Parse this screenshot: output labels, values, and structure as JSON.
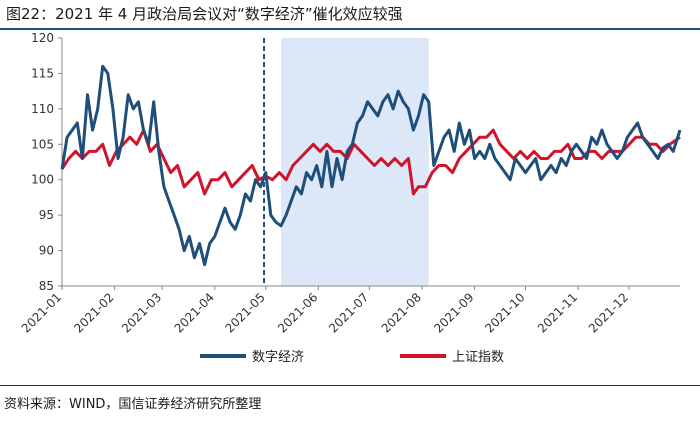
{
  "header": {
    "title": "图22：2021 年 4 月政治局会议对“数字经济”催化效应较强"
  },
  "footer": {
    "source": "资料来源：WIND，国信证券经济研究所整理"
  },
  "chart_data": {
    "type": "line",
    "title": "图22：2021 年 4 月政治局会议对“数字经济”催化效应较强",
    "xlabel": "",
    "ylabel": "",
    "x_ticks": [
      "2021-01",
      "2021-02",
      "2021-03",
      "2021-04",
      "2021-05",
      "2021-06",
      "2021-07",
      "2021-08",
      "2021-09",
      "2021-10",
      "2021-11",
      "2021-12"
    ],
    "y_ticks": [
      85,
      90,
      95,
      100,
      105,
      110,
      115,
      120
    ],
    "ylim": [
      85,
      120
    ],
    "xlim": [
      "2021-01-01",
      "2021-12-31"
    ],
    "legend_position": "bottom",
    "marker_line": {
      "date": "2021-04-30",
      "style": "dashed",
      "color": "#1f4e79"
    },
    "highlight_band": {
      "start": "2021-05-10",
      "end": "2021-08-05",
      "color": "#dce8f8"
    },
    "series": [
      {
        "name": "数字经济",
        "color": "#1f4e79",
        "points": [
          [
            "2021-01-01",
            101.5
          ],
          [
            "2021-01-04",
            106
          ],
          [
            "2021-01-07",
            107
          ],
          [
            "2021-01-10",
            108
          ],
          [
            "2021-01-13",
            103
          ],
          [
            "2021-01-16",
            112
          ],
          [
            "2021-01-19",
            107
          ],
          [
            "2021-01-22",
            110
          ],
          [
            "2021-01-25",
            116
          ],
          [
            "2021-01-28",
            115
          ],
          [
            "2021-01-31",
            110
          ],
          [
            "2021-02-03",
            103
          ],
          [
            "2021-02-06",
            106
          ],
          [
            "2021-02-09",
            112
          ],
          [
            "2021-02-12",
            110
          ],
          [
            "2021-02-15",
            111
          ],
          [
            "2021-02-18",
            107
          ],
          [
            "2021-02-21",
            105
          ],
          [
            "2021-02-24",
            111
          ],
          [
            "2021-02-27",
            104
          ],
          [
            "2021-03-02",
            99
          ],
          [
            "2021-03-05",
            97
          ],
          [
            "2021-03-08",
            95
          ],
          [
            "2021-03-11",
            93
          ],
          [
            "2021-03-14",
            90
          ],
          [
            "2021-03-17",
            92
          ],
          [
            "2021-03-20",
            89
          ],
          [
            "2021-03-23",
            91
          ],
          [
            "2021-03-26",
            88
          ],
          [
            "2021-03-29",
            91
          ],
          [
            "2021-04-01",
            92
          ],
          [
            "2021-04-04",
            94
          ],
          [
            "2021-04-07",
            96
          ],
          [
            "2021-04-10",
            94
          ],
          [
            "2021-04-13",
            93
          ],
          [
            "2021-04-16",
            95
          ],
          [
            "2021-04-19",
            98
          ],
          [
            "2021-04-22",
            97
          ],
          [
            "2021-04-25",
            100
          ],
          [
            "2021-04-28",
            99
          ],
          [
            "2021-05-01",
            101
          ],
          [
            "2021-05-04",
            95
          ],
          [
            "2021-05-07",
            94
          ],
          [
            "2021-05-10",
            93.5
          ],
          [
            "2021-05-13",
            95
          ],
          [
            "2021-05-16",
            97
          ],
          [
            "2021-05-19",
            99
          ],
          [
            "2021-05-22",
            98
          ],
          [
            "2021-05-25",
            101
          ],
          [
            "2021-05-28",
            100
          ],
          [
            "2021-05-31",
            102
          ],
          [
            "2021-06-03",
            99
          ],
          [
            "2021-06-06",
            104
          ],
          [
            "2021-06-09",
            99
          ],
          [
            "2021-06-12",
            103
          ],
          [
            "2021-06-15",
            100
          ],
          [
            "2021-06-18",
            104
          ],
          [
            "2021-06-21",
            105
          ],
          [
            "2021-06-24",
            108
          ],
          [
            "2021-06-27",
            109
          ],
          [
            "2021-06-30",
            111
          ],
          [
            "2021-07-03",
            110
          ],
          [
            "2021-07-06",
            109
          ],
          [
            "2021-07-09",
            111
          ],
          [
            "2021-07-12",
            112
          ],
          [
            "2021-07-15",
            110
          ],
          [
            "2021-07-18",
            112.5
          ],
          [
            "2021-07-21",
            111
          ],
          [
            "2021-07-24",
            110
          ],
          [
            "2021-07-27",
            107
          ],
          [
            "2021-07-30",
            109
          ],
          [
            "2021-08-02",
            112
          ],
          [
            "2021-08-05",
            111
          ],
          [
            "2021-08-08",
            102
          ],
          [
            "2021-08-11",
            104
          ],
          [
            "2021-08-14",
            106
          ],
          [
            "2021-08-17",
            107
          ],
          [
            "2021-08-20",
            104
          ],
          [
            "2021-08-23",
            108
          ],
          [
            "2021-08-26",
            105
          ],
          [
            "2021-08-29",
            107
          ],
          [
            "2021-09-01",
            103
          ],
          [
            "2021-09-04",
            104
          ],
          [
            "2021-09-07",
            103
          ],
          [
            "2021-09-10",
            105
          ],
          [
            "2021-09-13",
            103
          ],
          [
            "2021-09-16",
            102
          ],
          [
            "2021-09-19",
            101
          ],
          [
            "2021-09-22",
            100
          ],
          [
            "2021-09-25",
            103
          ],
          [
            "2021-09-28",
            102
          ],
          [
            "2021-10-01",
            101
          ],
          [
            "2021-10-04",
            102
          ],
          [
            "2021-10-07",
            103
          ],
          [
            "2021-10-10",
            100
          ],
          [
            "2021-10-13",
            101
          ],
          [
            "2021-10-16",
            102
          ],
          [
            "2021-10-19",
            101
          ],
          [
            "2021-10-22",
            103
          ],
          [
            "2021-10-25",
            102
          ],
          [
            "2021-10-28",
            104
          ],
          [
            "2021-10-31",
            105
          ],
          [
            "2021-11-03",
            104
          ],
          [
            "2021-11-06",
            103
          ],
          [
            "2021-11-09",
            106
          ],
          [
            "2021-11-12",
            105
          ],
          [
            "2021-11-15",
            107
          ],
          [
            "2021-11-18",
            105
          ],
          [
            "2021-11-21",
            104
          ],
          [
            "2021-11-24",
            103
          ],
          [
            "2021-11-27",
            104
          ],
          [
            "2021-11-30",
            106
          ],
          [
            "2021-12-03",
            107
          ],
          [
            "2021-12-06",
            108
          ],
          [
            "2021-12-09",
            106
          ],
          [
            "2021-12-12",
            105
          ],
          [
            "2021-12-15",
            104
          ],
          [
            "2021-12-18",
            103
          ],
          [
            "2021-12-21",
            104.5
          ],
          [
            "2021-12-24",
            105
          ],
          [
            "2021-12-27",
            104
          ],
          [
            "2021-12-31",
            107
          ]
        ]
      },
      {
        "name": "上证指数",
        "color": "#d0142c",
        "points": [
          [
            "2021-01-01",
            101.5
          ],
          [
            "2021-01-05",
            103
          ],
          [
            "2021-01-09",
            104
          ],
          [
            "2021-01-13",
            103
          ],
          [
            "2021-01-17",
            104
          ],
          [
            "2021-01-21",
            104
          ],
          [
            "2021-01-25",
            105
          ],
          [
            "2021-01-29",
            102
          ],
          [
            "2021-02-02",
            104
          ],
          [
            "2021-02-06",
            105
          ],
          [
            "2021-02-10",
            106
          ],
          [
            "2021-02-14",
            105
          ],
          [
            "2021-02-18",
            107
          ],
          [
            "2021-02-22",
            104
          ],
          [
            "2021-02-26",
            105
          ],
          [
            "2021-03-02",
            103
          ],
          [
            "2021-03-06",
            101
          ],
          [
            "2021-03-10",
            102
          ],
          [
            "2021-03-14",
            99
          ],
          [
            "2021-03-18",
            100
          ],
          [
            "2021-03-22",
            101
          ],
          [
            "2021-03-26",
            98
          ],
          [
            "2021-03-30",
            100
          ],
          [
            "2021-04-03",
            100
          ],
          [
            "2021-04-07",
            101
          ],
          [
            "2021-04-11",
            99
          ],
          [
            "2021-04-15",
            100
          ],
          [
            "2021-04-19",
            101
          ],
          [
            "2021-04-23",
            102
          ],
          [
            "2021-04-27",
            100
          ],
          [
            "2021-05-01",
            100.5
          ],
          [
            "2021-05-05",
            100
          ],
          [
            "2021-05-09",
            101
          ],
          [
            "2021-05-13",
            100
          ],
          [
            "2021-05-17",
            102
          ],
          [
            "2021-05-21",
            103
          ],
          [
            "2021-05-25",
            104
          ],
          [
            "2021-05-29",
            105
          ],
          [
            "2021-06-02",
            104
          ],
          [
            "2021-06-06",
            105
          ],
          [
            "2021-06-10",
            104
          ],
          [
            "2021-06-14",
            104
          ],
          [
            "2021-06-18",
            103
          ],
          [
            "2021-06-22",
            105
          ],
          [
            "2021-06-26",
            104
          ],
          [
            "2021-06-30",
            103
          ],
          [
            "2021-07-04",
            102
          ],
          [
            "2021-07-08",
            103
          ],
          [
            "2021-07-12",
            102
          ],
          [
            "2021-07-16",
            103
          ],
          [
            "2021-07-20",
            102
          ],
          [
            "2021-07-24",
            103
          ],
          [
            "2021-07-27",
            98
          ],
          [
            "2021-07-30",
            99
          ],
          [
            "2021-08-03",
            99
          ],
          [
            "2021-08-07",
            101
          ],
          [
            "2021-08-11",
            102
          ],
          [
            "2021-08-15",
            102
          ],
          [
            "2021-08-19",
            101
          ],
          [
            "2021-08-23",
            103
          ],
          [
            "2021-08-27",
            104
          ],
          [
            "2021-08-31",
            105
          ],
          [
            "2021-09-04",
            106
          ],
          [
            "2021-09-08",
            106
          ],
          [
            "2021-09-12",
            107
          ],
          [
            "2021-09-16",
            105
          ],
          [
            "2021-09-20",
            104
          ],
          [
            "2021-09-24",
            103
          ],
          [
            "2021-09-28",
            104
          ],
          [
            "2021-10-02",
            103
          ],
          [
            "2021-10-06",
            104
          ],
          [
            "2021-10-10",
            103
          ],
          [
            "2021-10-14",
            103
          ],
          [
            "2021-10-18",
            104
          ],
          [
            "2021-10-22",
            104
          ],
          [
            "2021-10-26",
            105
          ],
          [
            "2021-10-30",
            103
          ],
          [
            "2021-11-03",
            103
          ],
          [
            "2021-11-07",
            104
          ],
          [
            "2021-11-11",
            104
          ],
          [
            "2021-11-15",
            103
          ],
          [
            "2021-11-19",
            104
          ],
          [
            "2021-11-23",
            104
          ],
          [
            "2021-11-27",
            104
          ],
          [
            "2021-12-01",
            105
          ],
          [
            "2021-12-05",
            106
          ],
          [
            "2021-12-09",
            106
          ],
          [
            "2021-12-13",
            105
          ],
          [
            "2021-12-17",
            105
          ],
          [
            "2021-12-21",
            104
          ],
          [
            "2021-12-25",
            105
          ],
          [
            "2021-12-31",
            106
          ]
        ]
      }
    ]
  }
}
